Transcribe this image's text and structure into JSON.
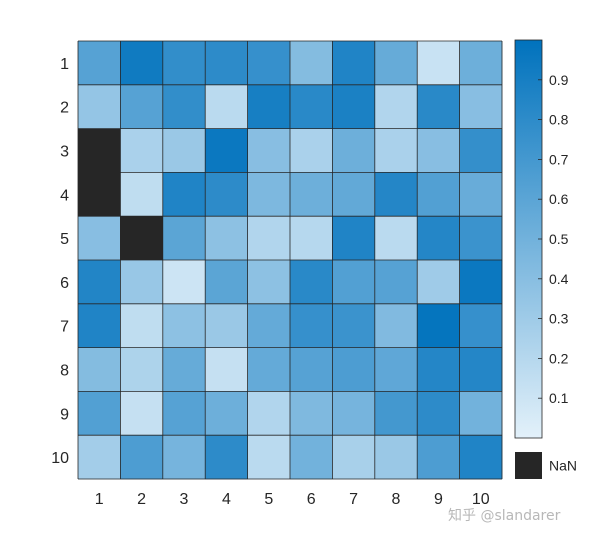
{
  "chart_data": {
    "type": "heatmap",
    "x_labels": [
      "1",
      "2",
      "3",
      "4",
      "5",
      "6",
      "7",
      "8",
      "9",
      "10"
    ],
    "y_labels": [
      "1",
      "2",
      "3",
      "4",
      "5",
      "6",
      "7",
      "8",
      "9",
      "10"
    ],
    "values": [
      [
        0.62,
        0.93,
        0.78,
        0.8,
        0.76,
        0.42,
        0.86,
        0.55,
        0.12,
        0.52
      ],
      [
        0.35,
        0.62,
        0.78,
        0.18,
        0.9,
        0.82,
        0.88,
        0.22,
        0.82,
        0.4
      ],
      [
        null,
        0.25,
        0.32,
        0.95,
        0.4,
        0.25,
        0.52,
        0.25,
        0.4,
        0.77
      ],
      [
        null,
        0.16,
        0.86,
        0.8,
        0.45,
        0.52,
        0.57,
        0.84,
        0.64,
        0.54
      ],
      [
        0.4,
        null,
        0.6,
        0.38,
        0.22,
        0.2,
        0.86,
        0.18,
        0.84,
        0.74
      ],
      [
        0.85,
        0.33,
        0.1,
        0.6,
        0.38,
        0.82,
        0.64,
        0.62,
        0.3,
        0.95
      ],
      [
        0.86,
        0.16,
        0.38,
        0.32,
        0.56,
        0.76,
        0.74,
        0.43,
        0.98,
        0.76
      ],
      [
        0.42,
        0.24,
        0.55,
        0.13,
        0.56,
        0.62,
        0.66,
        0.58,
        0.84,
        0.84
      ],
      [
        0.64,
        0.13,
        0.62,
        0.52,
        0.22,
        0.44,
        0.48,
        0.7,
        0.8,
        0.5
      ],
      [
        0.28,
        0.66,
        0.48,
        0.8,
        0.18,
        0.5,
        0.26,
        0.32,
        0.66,
        0.86
      ]
    ],
    "colorbar": {
      "ticks": [
        0.1,
        0.2,
        0.3,
        0.4,
        0.5,
        0.6,
        0.7,
        0.8,
        0.9
      ],
      "tick_labels": [
        "0.1",
        "0.2",
        "0.3",
        "0.4",
        "0.5",
        "0.6",
        "0.7",
        "0.8",
        "0.9"
      ],
      "range": [
        0.0,
        1.0
      ],
      "colormap": [
        "#e3f1fa",
        "#0072bd"
      ],
      "position": "right"
    },
    "nan": {
      "label": "NaN",
      "color": "#262626"
    },
    "grid_color": "#262626"
  },
  "watermark": "知乎 @slandarer"
}
